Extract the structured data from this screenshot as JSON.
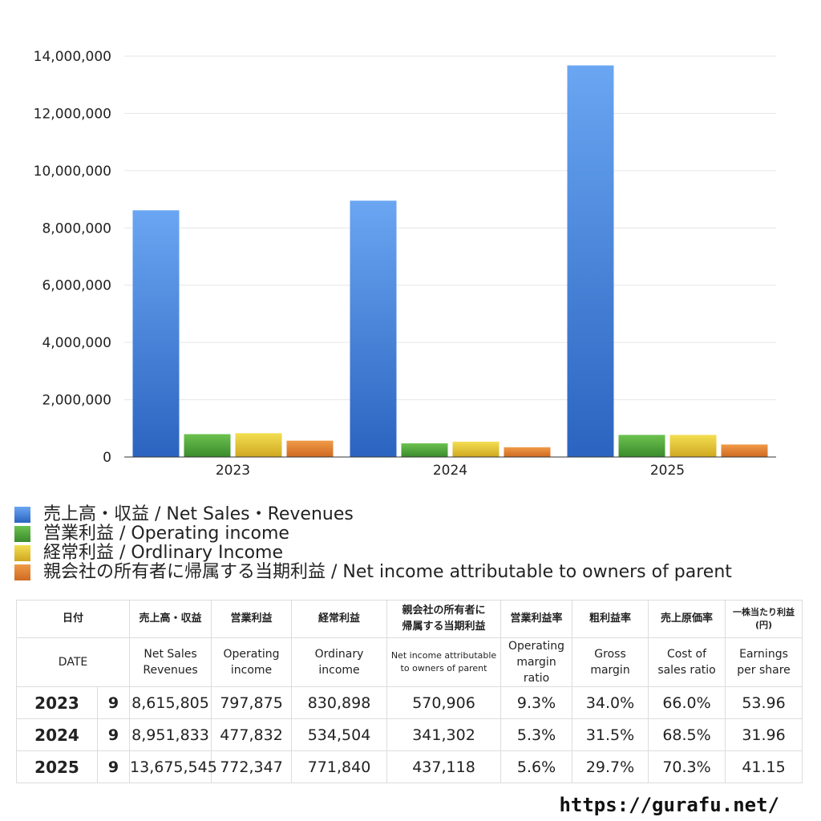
{
  "chart_data": {
    "type": "bar",
    "categories": [
      "2023",
      "2024",
      "2025"
    ],
    "series": [
      {
        "name": "売上高・収益 / Net Sales・Revenues",
        "color": "#3f7fdc",
        "values": [
          8615805,
          8951833,
          13675545
        ]
      },
      {
        "name": "営業利益 / Operating income",
        "color": "#4ea53a",
        "values": [
          797875,
          477832,
          772347
        ]
      },
      {
        "name": "経常利益 / Ordlinary Income",
        "color": "#e3c72f",
        "values": [
          830898,
          534504,
          771840
        ]
      },
      {
        "name": "親会社の所有者に帰属する当期利益 / Net income attributable to owners of parent",
        "color": "#e07f2e",
        "values": [
          570906,
          341302,
          437118
        ]
      }
    ],
    "yticks": [
      "0",
      "2,000,000",
      "4,000,000",
      "6,000,000",
      "8,000,000",
      "10,000,000",
      "12,000,000",
      "14,000,000"
    ],
    "ylim": [
      0,
      14000000
    ],
    "grid": true,
    "legend": "bottom"
  },
  "table": {
    "header_jp": {
      "date": "日付",
      "sales": "売上高・収益",
      "op": "営業利益",
      "ord": "経常利益",
      "net_l1": "親会社の所有者に",
      "net_l2": "帰属する当期利益",
      "opm": "営業利益率",
      "gm": "粗利益率",
      "cos": "売上原価率",
      "eps_l1": "一株当たり利益",
      "eps_l2": "(円)"
    },
    "header_en": {
      "date": "DATE",
      "sales_l1": "Net Sales",
      "sales_l2": "Revenues",
      "op_l1": "Operating",
      "op_l2": "income",
      "ord_l1": "Ordinary",
      "ord_l2": "income",
      "net_l1": "Net income attributable",
      "net_l2": "to owners of parent",
      "opm_l1": "Operating",
      "opm_l2": "margin",
      "opm_l3": "ratio",
      "gm_l1": "Gross",
      "gm_l2": "margin",
      "cos_l1": "Cost of",
      "cos_l2": "sales ratio",
      "eps_l1": "Earnings",
      "eps_l2": "per share"
    },
    "rows": [
      {
        "year": "2023",
        "month": "9",
        "sales": "8,615,805",
        "op": "797,875",
        "ord": "830,898",
        "net": "570,906",
        "opm": "9.3%",
        "gm": "34.0%",
        "cos": "66.0%",
        "eps": "53.96"
      },
      {
        "year": "2024",
        "month": "9",
        "sales": "8,951,833",
        "op": "477,832",
        "ord": "534,504",
        "net": "341,302",
        "opm": "5.3%",
        "gm": "31.5%",
        "cos": "68.5%",
        "eps": "31.96"
      },
      {
        "year": "2025",
        "month": "9",
        "sales": "13,675,545",
        "op": "772,347",
        "ord": "771,840",
        "net": "437,118",
        "opm": "5.6%",
        "gm": "29.7%",
        "cos": "70.3%",
        "eps": "41.15"
      }
    ]
  },
  "site_url": "https://gurafu.net/"
}
